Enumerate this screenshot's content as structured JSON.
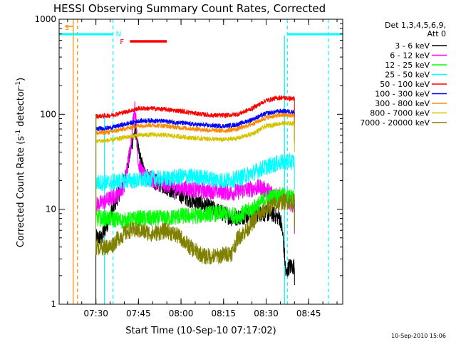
{
  "chart_data": {
    "type": "line",
    "title": "HESSI Observing Summary Count Rates, Corrected",
    "xlabel": "Start Time (10-Sep-10 07:17:02)",
    "ylabel_main": "Corrected Count Rate (s",
    "ylabel_sup1": "-1",
    "ylabel_mid": " detector",
    "ylabel_sup2": "-1",
    "ylabel_end": ")",
    "y_scale": "log",
    "ylim": [
      1,
      1000
    ],
    "y_ticks": [
      {
        "value": 1,
        "label": "1"
      },
      {
        "value": 10,
        "label": "10"
      },
      {
        "value": 100,
        "label": "100"
      },
      {
        "value": 1000,
        "label": "1000"
      }
    ],
    "xlim": [
      "07:17:02",
      "08:57:00"
    ],
    "x_ticks": [
      {
        "time": "07:30",
        "label": "07:30"
      },
      {
        "time": "07:45",
        "label": "07:45"
      },
      {
        "time": "08:00",
        "label": "08:00"
      },
      {
        "time": "08:15",
        "label": "08:15"
      },
      {
        "time": "08:30",
        "label": "08:30"
      },
      {
        "time": "08:45",
        "label": "08:45"
      }
    ],
    "legend_location": "right of plot",
    "legend_header": [
      "Det 1,3,4,5,6,9,",
      "Att 0"
    ],
    "series": [
      {
        "name": "3 - 6 keV",
        "color": "#000000",
        "points": [
          [
            "07:30:00",
            5
          ],
          [
            "07:32:00",
            5
          ],
          [
            "07:37:00",
            12
          ],
          [
            "07:40:00",
            20
          ],
          [
            "07:42:00",
            38
          ],
          [
            "07:43:00",
            55
          ],
          [
            "07:44:00",
            70
          ],
          [
            "07:45:00",
            40
          ],
          [
            "07:47:00",
            24
          ],
          [
            "07:50:00",
            20
          ],
          [
            "07:55:00",
            17
          ],
          [
            "08:00:00",
            14
          ],
          [
            "08:05:00",
            12
          ],
          [
            "08:10:00",
            10.5
          ],
          [
            "08:15:00",
            9
          ],
          [
            "08:18:00",
            8
          ],
          [
            "08:22:00",
            8.5
          ],
          [
            "08:27:00",
            9
          ],
          [
            "08:32:00",
            9
          ],
          [
            "08:35:00",
            8
          ],
          [
            "08:36:00",
            5
          ],
          [
            "08:37:00",
            2
          ],
          [
            "08:38:00",
            2.5
          ],
          [
            "08:40:00",
            2.5
          ]
        ]
      },
      {
        "name": "6 - 12 keV",
        "color": "#ff00ff",
        "points": [
          [
            "07:30:00",
            11
          ],
          [
            "07:33:00",
            12
          ],
          [
            "07:37:00",
            14
          ],
          [
            "07:40:00",
            18
          ],
          [
            "07:42:00",
            40
          ],
          [
            "07:43:00",
            80
          ],
          [
            "07:43:40",
            120
          ],
          [
            "07:44:20",
            70
          ],
          [
            "07:45:00",
            30
          ],
          [
            "07:47:00",
            22
          ],
          [
            "07:52:00",
            19
          ],
          [
            "07:58:00",
            17
          ],
          [
            "08:05:00",
            16
          ],
          [
            "08:12:00",
            15.5
          ],
          [
            "08:18:00",
            15
          ],
          [
            "08:23:00",
            16
          ],
          [
            "08:28:00",
            17
          ],
          [
            "08:32:00",
            15
          ],
          [
            "08:36:00",
            13
          ],
          [
            "08:40:00",
            11
          ]
        ]
      },
      {
        "name": "12 - 25 keV",
        "color": "#00ff00",
        "points": [
          [
            "07:30:00",
            8
          ],
          [
            "07:35:00",
            8
          ],
          [
            "07:40:00",
            7.5
          ],
          [
            "07:45:00",
            8
          ],
          [
            "07:50:00",
            8
          ],
          [
            "07:55:00",
            8
          ],
          [
            "08:00:00",
            8.5
          ],
          [
            "08:05:00",
            8.5
          ],
          [
            "08:10:00",
            9
          ],
          [
            "08:15:00",
            9
          ],
          [
            "08:20:00",
            8.5
          ],
          [
            "08:25:00",
            10
          ],
          [
            "08:30:00",
            13
          ],
          [
            "08:35:00",
            14
          ],
          [
            "08:40:00",
            13
          ]
        ]
      },
      {
        "name": "25 - 50 keV",
        "color": "#00ffff",
        "points": [
          [
            "07:30:00",
            19
          ],
          [
            "07:35:00",
            19
          ],
          [
            "07:40:00",
            20
          ],
          [
            "07:45:00",
            20
          ],
          [
            "07:50:00",
            21
          ],
          [
            "07:55:00",
            21
          ],
          [
            "08:00:00",
            22
          ],
          [
            "08:05:00",
            22
          ],
          [
            "08:10:00",
            21
          ],
          [
            "08:15:00",
            20
          ],
          [
            "08:20:00",
            21
          ],
          [
            "08:25:00",
            24
          ],
          [
            "08:30:00",
            28
          ],
          [
            "08:35:00",
            31
          ],
          [
            "08:40:00",
            32
          ]
        ]
      },
      {
        "name": "50 - 100 keV",
        "color": "#ff0000",
        "points": [
          [
            "07:30:00",
            95
          ],
          [
            "07:35:00",
            97
          ],
          [
            "07:40:00",
            105
          ],
          [
            "07:45:00",
            115
          ],
          [
            "07:50:00",
            115
          ],
          [
            "07:55:00",
            112
          ],
          [
            "08:00:00",
            108
          ],
          [
            "08:05:00",
            102
          ],
          [
            "08:10:00",
            98
          ],
          [
            "08:15:00",
            97
          ],
          [
            "08:20:00",
            100
          ],
          [
            "08:25:00",
            115
          ],
          [
            "08:30:00",
            140
          ],
          [
            "08:35:00",
            150
          ],
          [
            "08:40:00",
            145
          ]
        ]
      },
      {
        "name": "100 - 300 keV",
        "color": "#0000ff",
        "points": [
          [
            "07:30:00",
            70
          ],
          [
            "07:35:00",
            72
          ],
          [
            "07:40:00",
            78
          ],
          [
            "07:45:00",
            85
          ],
          [
            "07:50:00",
            86
          ],
          [
            "07:55:00",
            84
          ],
          [
            "08:00:00",
            81
          ],
          [
            "08:05:00",
            78
          ],
          [
            "08:10:00",
            76
          ],
          [
            "08:15:00",
            75
          ],
          [
            "08:20:00",
            78
          ],
          [
            "08:25:00",
            88
          ],
          [
            "08:30:00",
            102
          ],
          [
            "08:35:00",
            108
          ],
          [
            "08:40:00",
            106
          ]
        ]
      },
      {
        "name": "300 - 800 keV",
        "color": "#ff8800",
        "points": [
          [
            "07:30:00",
            63
          ],
          [
            "07:35:00",
            65
          ],
          [
            "07:40:00",
            70
          ],
          [
            "07:45:00",
            76
          ],
          [
            "07:50:00",
            77
          ],
          [
            "07:55:00",
            75
          ],
          [
            "08:00:00",
            72
          ],
          [
            "08:05:00",
            70
          ],
          [
            "08:10:00",
            68
          ],
          [
            "08:15:00",
            67
          ],
          [
            "08:20:00",
            70
          ],
          [
            "08:25:00",
            79
          ],
          [
            "08:30:00",
            92
          ],
          [
            "08:35:00",
            98
          ],
          [
            "08:40:00",
            97
          ]
        ]
      },
      {
        "name": "800 - 7000 keV",
        "color": "#d4c400",
        "points": [
          [
            "07:30:00",
            52
          ],
          [
            "07:35:00",
            53
          ],
          [
            "07:40:00",
            57
          ],
          [
            "07:45:00",
            60
          ],
          [
            "07:50:00",
            61
          ],
          [
            "07:55:00",
            60
          ],
          [
            "08:00:00",
            58
          ],
          [
            "08:05:00",
            56
          ],
          [
            "08:10:00",
            55
          ],
          [
            "08:15:00",
            54
          ],
          [
            "08:20:00",
            56
          ],
          [
            "08:25:00",
            62
          ],
          [
            "08:30:00",
            75
          ],
          [
            "08:35:00",
            80
          ],
          [
            "08:40:00",
            80
          ]
        ]
      },
      {
        "name": "7000 - 20000 keV",
        "color": "#808000",
        "points": [
          [
            "07:30:00",
            4
          ],
          [
            "07:35:00",
            4
          ],
          [
            "07:38:00",
            5
          ],
          [
            "07:42:00",
            6
          ],
          [
            "07:45:00",
            6
          ],
          [
            "07:50:00",
            5.5
          ],
          [
            "07:55:00",
            6
          ],
          [
            "08:00:00",
            5
          ],
          [
            "08:03:00",
            4
          ],
          [
            "08:08:00",
            3.2
          ],
          [
            "08:13:00",
            3.2
          ],
          [
            "08:18:00",
            3.5
          ],
          [
            "08:20:00",
            5
          ],
          [
            "08:23:00",
            6
          ],
          [
            "08:27:00",
            8.5
          ],
          [
            "08:32:00",
            11
          ],
          [
            "08:36:00",
            12
          ],
          [
            "08:40:00",
            12
          ]
        ]
      }
    ],
    "annotations": {
      "saa_label": "S",
      "flare_label": "F",
      "night_label": "N",
      "saa_lines": [
        "07:22:00",
        "07:23:30"
      ],
      "night_lines": [
        "07:36:00",
        "08:37:30",
        "08:52:00"
      ],
      "spacecraft_lines": [
        "07:33:00",
        "08:36:30"
      ],
      "flare_bar": [
        "07:42:00",
        "07:55:00"
      ],
      "night_bars": [
        [
          "07:17:02",
          "07:36:00"
        ],
        [
          "08:37:30",
          "08:57:00"
        ]
      ]
    },
    "colors": {
      "saa": "#ff8800",
      "night": "#00ffff",
      "flare": "#ff0000"
    }
  },
  "footer": {
    "timestamp": "10-Sep-2010 15:06"
  }
}
